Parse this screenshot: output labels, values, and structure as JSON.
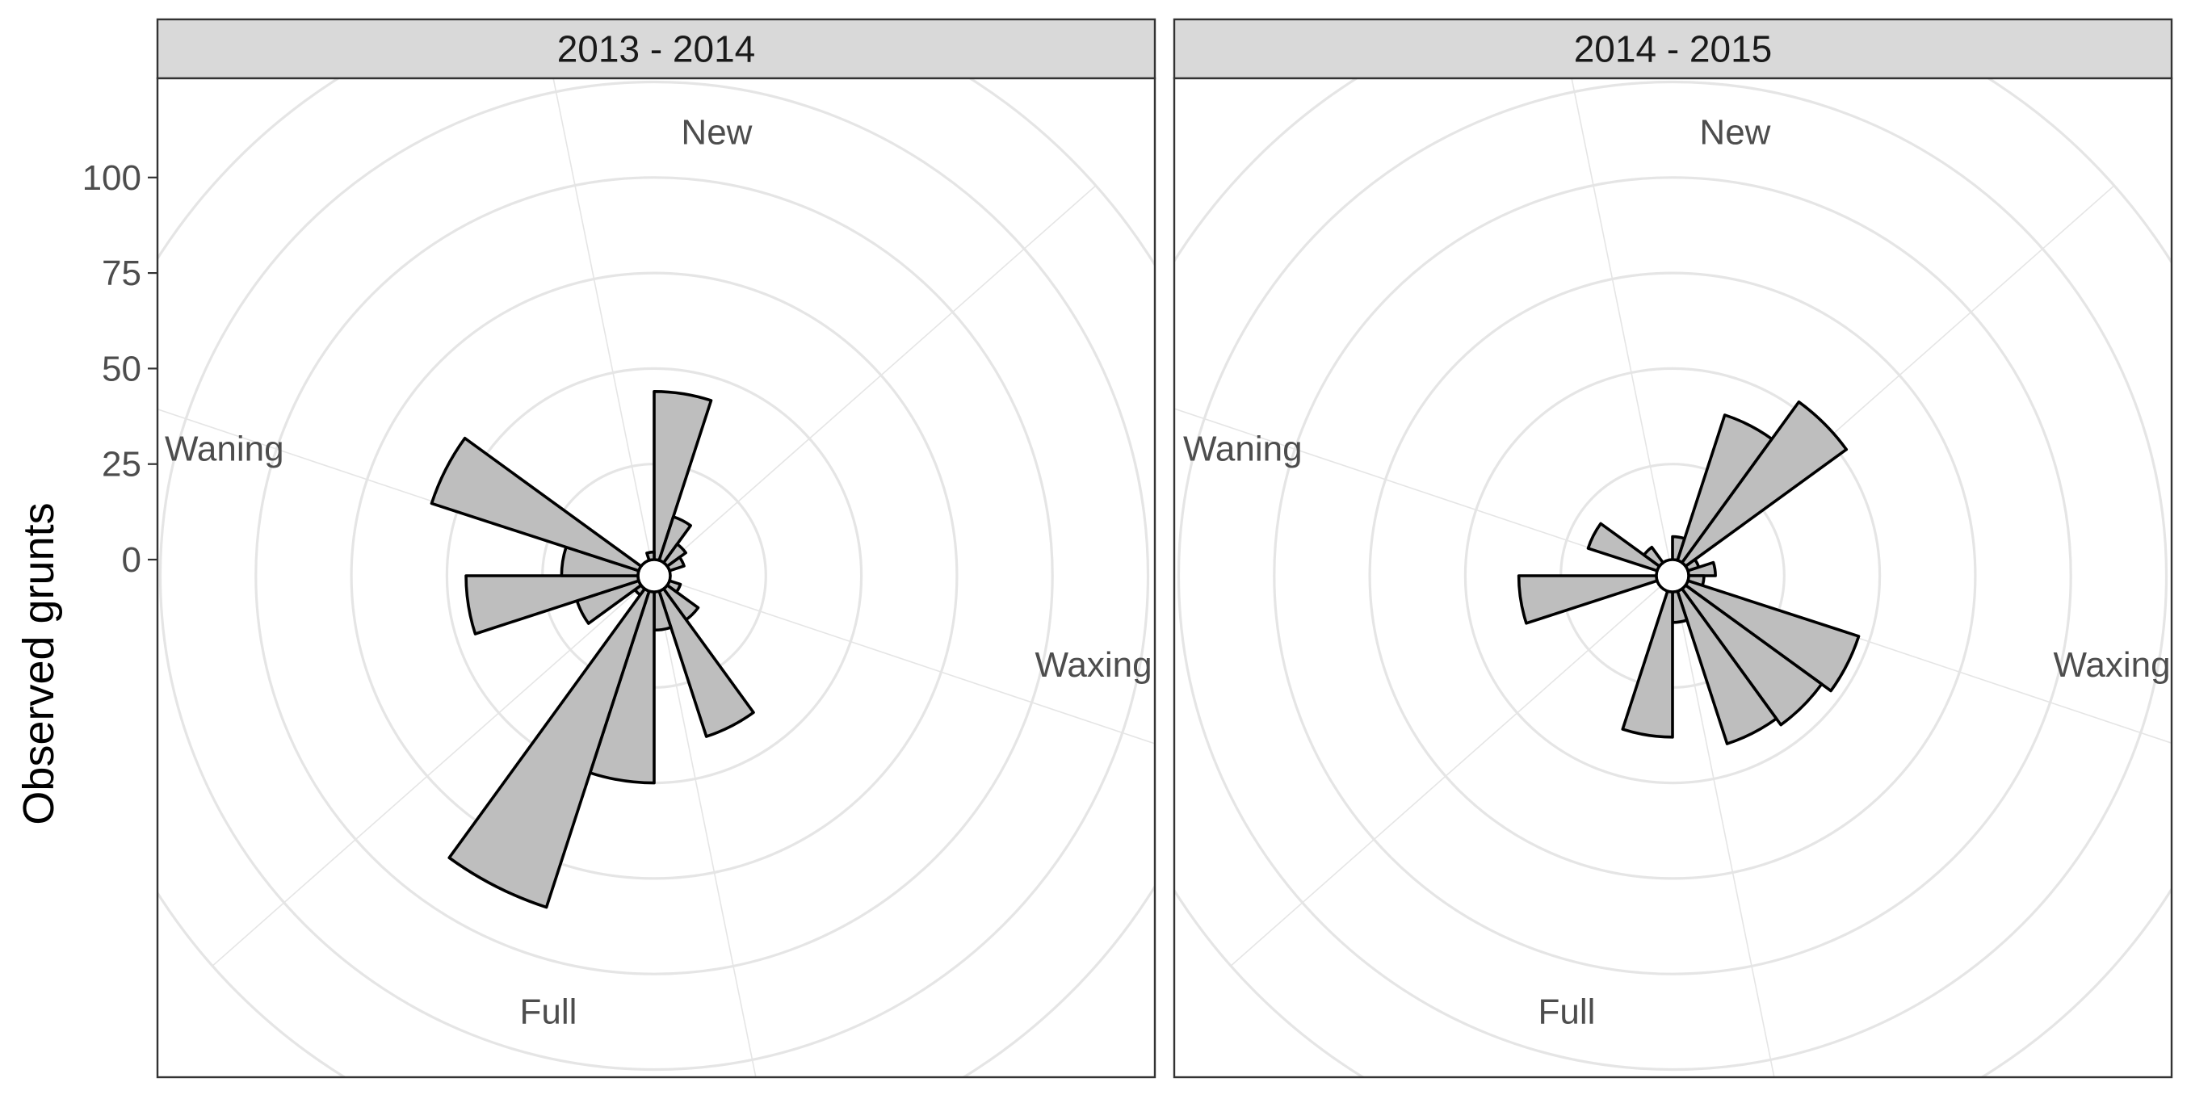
{
  "chart_data": {
    "type": "polar-bar",
    "ylabel": "Observed grunts",
    "y_ticks": [
      0,
      25,
      50,
      75,
      100
    ],
    "phase_labels": [
      "New",
      "Waxing",
      "Full",
      "Waning"
    ],
    "colors": {
      "bar_fill": "#bebebe",
      "bar_stroke": "#000000",
      "grid": "#e5e5e5",
      "strip_bg": "#d9d9d9"
    },
    "panels": [
      {
        "title": "2013 - 2014",
        "sectors": [
          {
            "phase_start": 0.0,
            "phase_end": 0.05,
            "value": 44
          },
          {
            "phase_start": 0.05,
            "phase_end": 0.1,
            "value": 12
          },
          {
            "phase_start": 0.1,
            "phase_end": 0.15,
            "value": 6
          },
          {
            "phase_start": 0.15,
            "phase_end": 0.2,
            "value": 4
          },
          {
            "phase_start": 0.2,
            "phase_end": 0.25,
            "value": 0
          },
          {
            "phase_start": 0.25,
            "phase_end": 0.3,
            "value": 0
          },
          {
            "phase_start": 0.3,
            "phase_end": 0.35,
            "value": 3
          },
          {
            "phase_start": 0.35,
            "phase_end": 0.4,
            "value": 10
          },
          {
            "phase_start": 0.4,
            "phase_end": 0.45,
            "value": 40
          },
          {
            "phase_start": 0.45,
            "phase_end": 0.5,
            "value": 10
          },
          {
            "phase_start": 0.5,
            "phase_end": 0.55,
            "value": 50
          },
          {
            "phase_start": 0.55,
            "phase_end": 0.6,
            "value": 87
          },
          {
            "phase_start": 0.6,
            "phase_end": 0.65,
            "value": 2
          },
          {
            "phase_start": 0.65,
            "phase_end": 0.7,
            "value": 17
          },
          {
            "phase_start": 0.7,
            "phase_end": 0.75,
            "value": 45
          },
          {
            "phase_start": 0.75,
            "phase_end": 0.8,
            "value": 20
          },
          {
            "phase_start": 0.8,
            "phase_end": 0.85,
            "value": 57
          },
          {
            "phase_start": 0.85,
            "phase_end": 0.9,
            "value": 0
          },
          {
            "phase_start": 0.9,
            "phase_end": 0.95,
            "value": 0
          },
          {
            "phase_start": 0.95,
            "phase_end": 1.0,
            "value": 2
          }
        ]
      },
      {
        "title": "2014 - 2015",
        "sectors": [
          {
            "phase_start": 0.0,
            "phase_end": 0.05,
            "value": 6
          },
          {
            "phase_start": 0.05,
            "phase_end": 0.1,
            "value": 40
          },
          {
            "phase_start": 0.1,
            "phase_end": 0.15,
            "value": 52
          },
          {
            "phase_start": 0.15,
            "phase_end": 0.2,
            "value": 3
          },
          {
            "phase_start": 0.2,
            "phase_end": 0.25,
            "value": 7
          },
          {
            "phase_start": 0.25,
            "phase_end": 0.3,
            "value": 4
          },
          {
            "phase_start": 0.3,
            "phase_end": 0.35,
            "value": 47
          },
          {
            "phase_start": 0.35,
            "phase_end": 0.4,
            "value": 44
          },
          {
            "phase_start": 0.4,
            "phase_end": 0.45,
            "value": 42
          },
          {
            "phase_start": 0.45,
            "phase_end": 0.5,
            "value": 8
          },
          {
            "phase_start": 0.5,
            "phase_end": 0.55,
            "value": 38
          },
          {
            "phase_start": 0.55,
            "phase_end": 0.6,
            "value": 0
          },
          {
            "phase_start": 0.6,
            "phase_end": 0.65,
            "value": 0
          },
          {
            "phase_start": 0.65,
            "phase_end": 0.7,
            "value": 0
          },
          {
            "phase_start": 0.7,
            "phase_end": 0.75,
            "value": 36
          },
          {
            "phase_start": 0.75,
            "phase_end": 0.8,
            "value": 0
          },
          {
            "phase_start": 0.8,
            "phase_end": 0.85,
            "value": 19
          },
          {
            "phase_start": 0.85,
            "phase_end": 0.9,
            "value": 5
          },
          {
            "phase_start": 0.9,
            "phase_end": 0.95,
            "value": 0
          },
          {
            "phase_start": 0.95,
            "phase_end": 1.0,
            "value": 0
          }
        ]
      }
    ]
  }
}
